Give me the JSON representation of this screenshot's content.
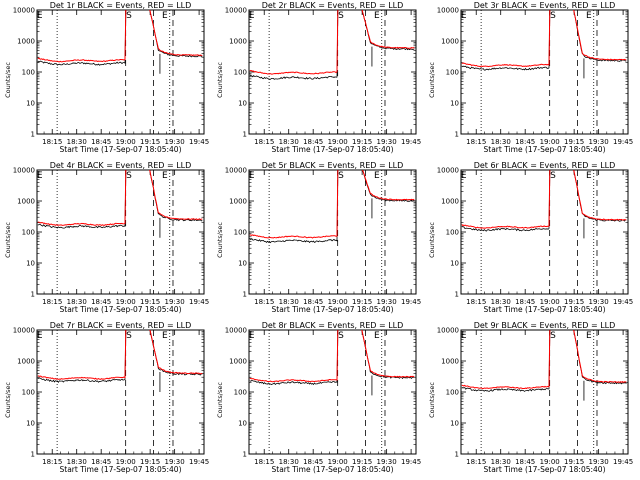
{
  "chart_data": {
    "type": "line",
    "layout": "3x3 grid",
    "y_scale": "log",
    "ylim": [
      1,
      10000
    ],
    "y_ticks": [
      "1",
      "10",
      "100",
      "1000",
      "10000"
    ],
    "x_tick_labels": [
      "18:15",
      "18:30",
      "18:45",
      "19:00",
      "19:15",
      "19:30",
      "19:45"
    ],
    "xlabel": "Start Time (17-Sep-07 18:05:40)",
    "ylabel": "Counts/sec",
    "grid": false,
    "series_colors": {
      "events": "#000000",
      "lld": "#ff0000"
    },
    "markers": [
      {
        "label": "E",
        "time": "18:05"
      },
      {
        "label": "S",
        "time": "19:02"
      },
      {
        "label": "E",
        "time": "19:24"
      }
    ],
    "dotted_lines": [
      "18:18",
      "19:27"
    ],
    "dashed_lines": [
      "19:00",
      "19:17",
      "19:29"
    ],
    "panels": [
      {
        "title": "Det 1r BLACK = Events, RED = LLD",
        "events_base": 200,
        "lld_base": 250,
        "peak": 16000,
        "post": 350
      },
      {
        "title": "Det 2r BLACK = Events, RED = LLD",
        "events_base": 70,
        "lld_base": 100,
        "peak": 16000,
        "post": 600
      },
      {
        "title": "Det 3r BLACK = Events, RED = LLD",
        "events_base": 140,
        "lld_base": 175,
        "peak": 16000,
        "post": 250
      },
      {
        "title": "Det 4r BLACK = Events, RED = LLD",
        "events_base": 160,
        "lld_base": 190,
        "peak": 16000,
        "post": 260
      },
      {
        "title": "Det 5r BLACK = Events, RED = LLD",
        "events_base": 55,
        "lld_base": 75,
        "peak": 16000,
        "post": 1100
      },
      {
        "title": "Det 6r BLACK = Events, RED = LLD",
        "events_base": 130,
        "lld_base": 155,
        "peak": 16000,
        "post": 250
      },
      {
        "title": "Det 7r BLACK = Events, RED = LLD",
        "events_base": 250,
        "lld_base": 300,
        "peak": 16000,
        "post": 400
      },
      {
        "title": "Det 8r BLACK = Events, RED = LLD",
        "events_base": 210,
        "lld_base": 250,
        "peak": 16000,
        "post": 310
      },
      {
        "title": "Det 9r BLACK = Events, RED = LLD",
        "events_base": 125,
        "lld_base": 150,
        "peak": 16000,
        "post": 210
      }
    ]
  }
}
